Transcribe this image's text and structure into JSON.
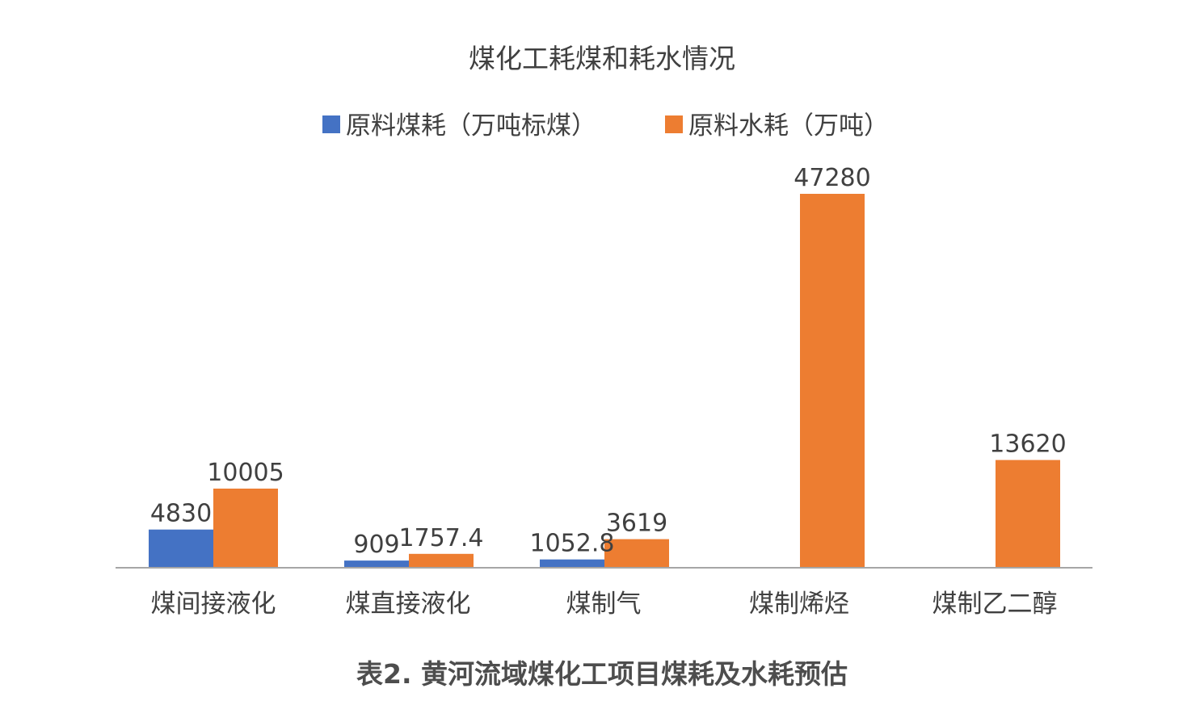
{
  "caption": "表2. 黄河流域煤化工项目煤耗及水耗预估",
  "chart_data": {
    "type": "bar",
    "title": "煤化工耗煤和耗水情况",
    "categories": [
      "煤间接液化",
      "煤直接液化",
      "煤制气",
      "煤制烯烃",
      "煤制乙二醇"
    ],
    "series": [
      {
        "name": "原料煤耗（万吨标煤）",
        "color": "#4472c4",
        "values": [
          4830,
          909,
          1052.8,
          null,
          null
        ],
        "labels": [
          "4830",
          "909",
          "1052.8",
          "",
          ""
        ]
      },
      {
        "name": "原料水耗（万吨）",
        "color": "#ed7d31",
        "values": [
          10005,
          1757.4,
          3619,
          47280,
          13620
        ],
        "labels": [
          "10005",
          "1757.4",
          "3619",
          "47280",
          "13620"
        ]
      }
    ],
    "ylim": [
      0,
      47280
    ],
    "grid": false,
    "legend": "top-center",
    "axis_color": "#a6a6a6"
  }
}
